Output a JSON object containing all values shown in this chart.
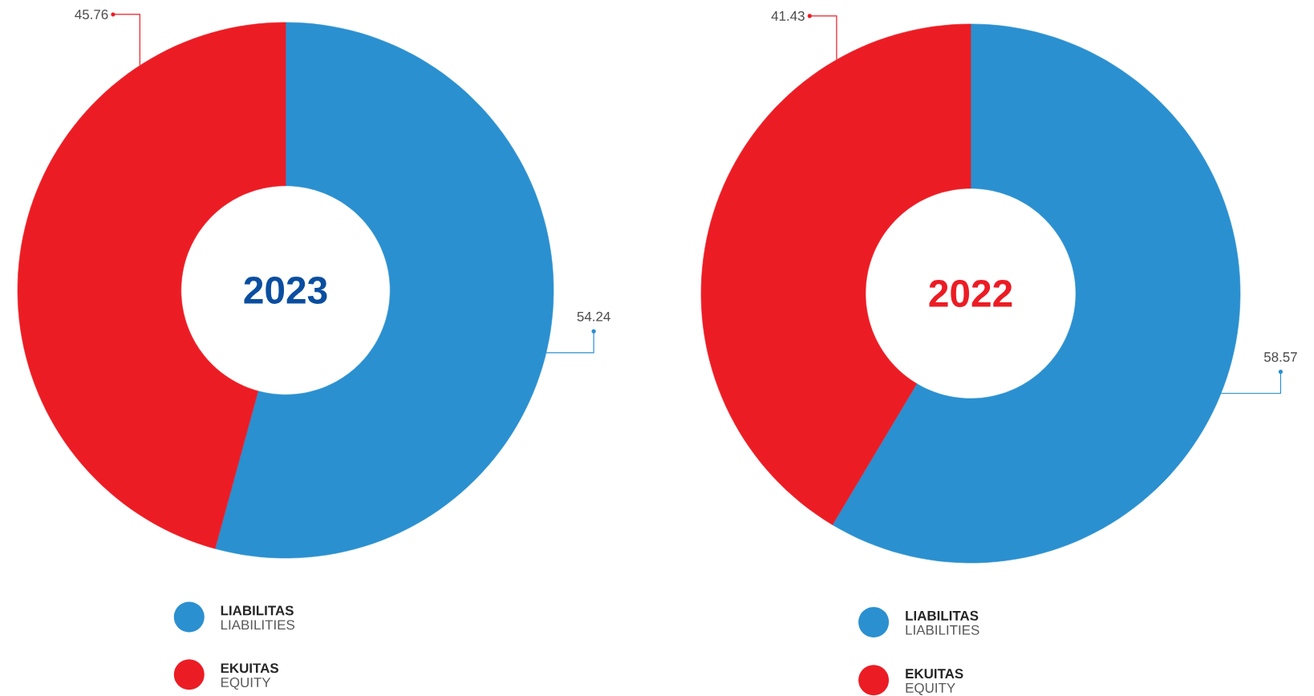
{
  "chart_data": [
    {
      "type": "donut",
      "title": "2023",
      "categories": [
        "LIABILITAS",
        "EKUITAS"
      ],
      "values": [
        54.24,
        45.76
      ],
      "colors": [
        "#2a90d0",
        "#ec1c24"
      ],
      "data_labels": true,
      "legend": "bottom",
      "annotations": [
        "LIABILITIES",
        "EQUITY"
      ]
    },
    {
      "type": "donut",
      "title": "2022",
      "categories": [
        "LIABILITAS",
        "EKUITAS"
      ],
      "values": [
        58.57,
        41.43
      ],
      "colors": [
        "#2a90d0",
        "#ec1c24"
      ],
      "data_labels": true,
      "legend": "bottom",
      "annotations": [
        "LIABILITIES",
        "EQUITY"
      ]
    }
  ]
}
